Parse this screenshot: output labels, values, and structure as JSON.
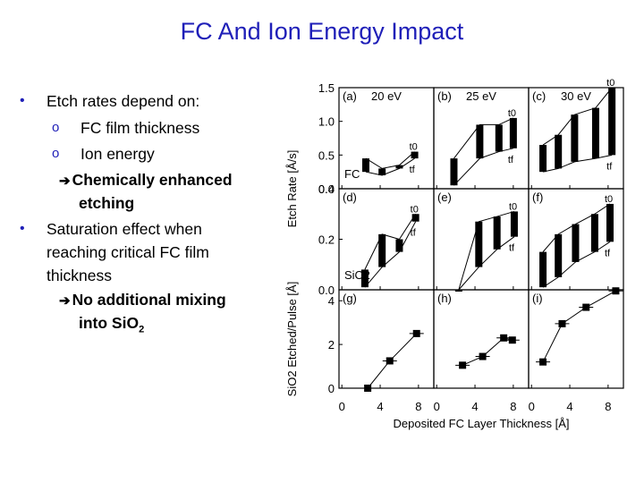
{
  "slide": {
    "title": "FC And Ion Energy Impact"
  },
  "bullets": {
    "b1": "Etch rates depend on:",
    "b1_sub1": "FC film thickness",
    "b1_sub2": "Ion energy",
    "b1_result_line1": "Chemically enhanced",
    "b1_result_line2": "etching",
    "b2_line1": "Saturation effect when",
    "b2_line2": "reaching critical FC film",
    "b2_line3": "thickness",
    "b2_result_line1": "No additional mixing",
    "b2_result_line2_pre": "into SiO",
    "b2_result_line2_sub": "2",
    "bullet_marker": "•",
    "sub_marker": "o",
    "arrow_marker": "➔"
  },
  "chart_data": {
    "type": "scatter",
    "xlabel": "Deposited FC Layer Thickness [Å]",
    "x_ticks": [
      "0",
      "4",
      "8"
    ],
    "columns": [
      "20 eV",
      "25 eV",
      "30 eV"
    ],
    "rows": [
      {
        "ylabel": "Etch Rate [Å/s]",
        "ylim": [
          0,
          1.5
        ],
        "y_ticks": [
          "0.0",
          "0.5",
          "1.0",
          "1.5"
        ],
        "row_label": "FC",
        "panels": [
          {
            "label": "(a)",
            "title": "20 eV",
            "t0": [
              [
                2.5,
                0.45
              ],
              [
                4.2,
                0.3
              ],
              [
                6.0,
                0.35
              ],
              [
                7.6,
                0.55
              ]
            ],
            "tf": [
              [
                2.5,
                0.25
              ],
              [
                4.2,
                0.2
              ],
              [
                6.0,
                0.3
              ],
              [
                7.6,
                0.45
              ]
            ],
            "t0_label": "t0",
            "tf_label": "tf"
          },
          {
            "label": "(b)",
            "title": "25 eV",
            "t0": [
              [
                1.8,
                0.45
              ],
              [
                4.5,
                0.95
              ],
              [
                6.5,
                0.95
              ],
              [
                8.0,
                1.05
              ]
            ],
            "tf": [
              [
                1.8,
                0.05
              ],
              [
                4.5,
                0.45
              ],
              [
                6.5,
                0.55
              ],
              [
                8.0,
                0.6
              ]
            ],
            "t0_label": "t0",
            "tf_label": "tf"
          },
          {
            "label": "(c)",
            "title": "30 eV",
            "t0": [
              [
                1.2,
                0.65
              ],
              [
                2.8,
                0.8
              ],
              [
                4.5,
                1.1
              ],
              [
                6.7,
                1.2
              ],
              [
                8.4,
                1.5
              ]
            ],
            "tf": [
              [
                1.2,
                0.25
              ],
              [
                2.8,
                0.3
              ],
              [
                4.5,
                0.4
              ],
              [
                6.7,
                0.45
              ],
              [
                8.4,
                0.5
              ]
            ],
            "t0_label": "t0",
            "tf_label": "tf"
          }
        ]
      },
      {
        "ylabel": "Etch Rate [Å/s]",
        "ylim": [
          0,
          0.4
        ],
        "y_ticks": [
          "0.0",
          "0.2",
          "0.4"
        ],
        "row_label": "SiO2",
        "panels": [
          {
            "label": "(d)",
            "title": "",
            "t0": [
              [
                2.4,
                0.08
              ],
              [
                4.2,
                0.22
              ],
              [
                6.0,
                0.2
              ],
              [
                7.7,
                0.3
              ]
            ],
            "tf": [
              [
                2.4,
                0.01
              ],
              [
                4.2,
                0.09
              ],
              [
                6.0,
                0.15
              ],
              [
                7.7,
                0.27
              ]
            ],
            "t0_label": "t0",
            "tf_label": "tf"
          },
          {
            "label": "(e)",
            "title": "",
            "t0": [
              [
                2.3,
                0.0
              ],
              [
                4.4,
                0.27
              ],
              [
                6.3,
                0.29
              ],
              [
                8.1,
                0.31
              ]
            ],
            "tf": [
              [
                2.3,
                0.0
              ],
              [
                4.4,
                0.09
              ],
              [
                6.3,
                0.16
              ],
              [
                8.1,
                0.21
              ]
            ],
            "t0_label": "t0",
            "tf_label": "tf"
          },
          {
            "label": "(f)",
            "title": "",
            "t0": [
              [
                1.2,
                0.15
              ],
              [
                2.8,
                0.22
              ],
              [
                4.6,
                0.26
              ],
              [
                6.6,
                0.3
              ],
              [
                8.2,
                0.34
              ]
            ],
            "tf": [
              [
                1.2,
                0.01
              ],
              [
                2.8,
                0.05
              ],
              [
                4.6,
                0.11
              ],
              [
                6.6,
                0.15
              ],
              [
                8.2,
                0.19
              ]
            ],
            "t0_label": "t0",
            "tf_label": "tf"
          }
        ]
      },
      {
        "ylabel": "SiO2 Etched/Pulse [Å]",
        "ylim": [
          0,
          4.5
        ],
        "y_ticks": [
          "0",
          "2",
          "4"
        ],
        "row_label": "",
        "panels": [
          {
            "label": "(g)",
            "title": "",
            "points": [
              [
                2.7,
                0.0
              ],
              [
                5.0,
                1.25
              ],
              [
                7.8,
                2.5
              ]
            ]
          },
          {
            "label": "(h)",
            "title": "",
            "points": [
              [
                2.7,
                1.05
              ],
              [
                4.8,
                1.45
              ],
              [
                7.0,
                2.3
              ],
              [
                7.9,
                2.2
              ]
            ]
          },
          {
            "label": "(i)",
            "title": "",
            "points": [
              [
                1.2,
                1.2
              ],
              [
                3.2,
                2.95
              ],
              [
                5.7,
                3.7
              ],
              [
                8.8,
                4.45
              ]
            ]
          }
        ]
      }
    ]
  }
}
